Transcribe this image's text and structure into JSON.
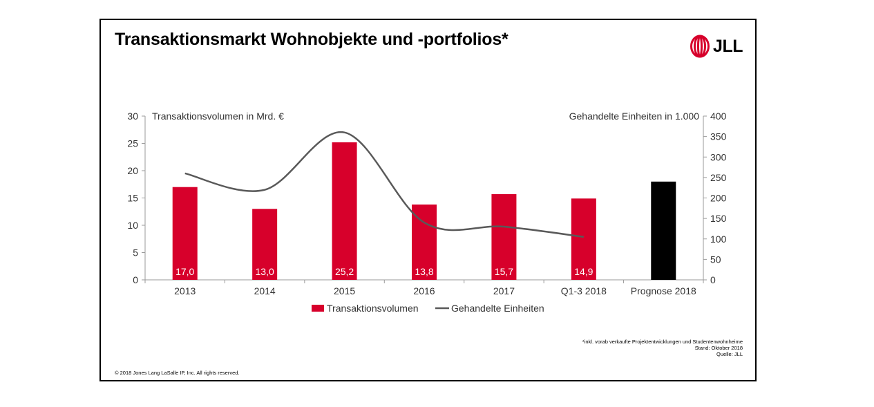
{
  "slide": {
    "title": "Transaktionsmarkt Wohnobjekte und -portfolios*",
    "logo_text": "JLL",
    "footnote_lines": [
      "*inkl. vorab verkaufte Projektentwicklungen und Studentenwohnheime",
      "Stand: Oktober 2018",
      "Quelle: JLL"
    ],
    "copyright": "© 2018 Jones Lang LaSalle IP, Inc. All rights reserved."
  },
  "colors": {
    "bar": "#d7002b",
    "forecast_bar": "#000000",
    "line": "#595959",
    "axis": "#9a9a9a"
  },
  "chart_data": {
    "type": "bar",
    "categories": [
      "2013",
      "2014",
      "2015",
      "2016",
      "2017",
      "Q1-3 2018",
      "Prognose 2018"
    ],
    "ylabel_left": "Transaktionsvolumen in Mrd. €",
    "ylabel_right": "Gehandelte Einheiten in 1.000",
    "ylim_left": [
      0,
      30
    ],
    "ylim_right": [
      0,
      400
    ],
    "yticks_left": [
      0,
      5,
      10,
      15,
      20,
      25,
      30
    ],
    "yticks_right": [
      0,
      50,
      100,
      150,
      200,
      250,
      300,
      350,
      400
    ],
    "series": [
      {
        "name": "Transaktionsvolumen",
        "type": "bar",
        "axis": "left",
        "values": [
          17.0,
          13.0,
          25.2,
          13.8,
          15.7,
          14.9,
          18.0
        ],
        "labels": [
          "17,0",
          "13,0",
          "25,2",
          "13,8",
          "15,7",
          "14,9",
          ""
        ]
      },
      {
        "name": "Gehandelte Einheiten",
        "type": "line",
        "axis": "right",
        "values": [
          260,
          220,
          360,
          140,
          130,
          105,
          null
        ]
      }
    ],
    "legend": "bottom",
    "grid": false
  }
}
